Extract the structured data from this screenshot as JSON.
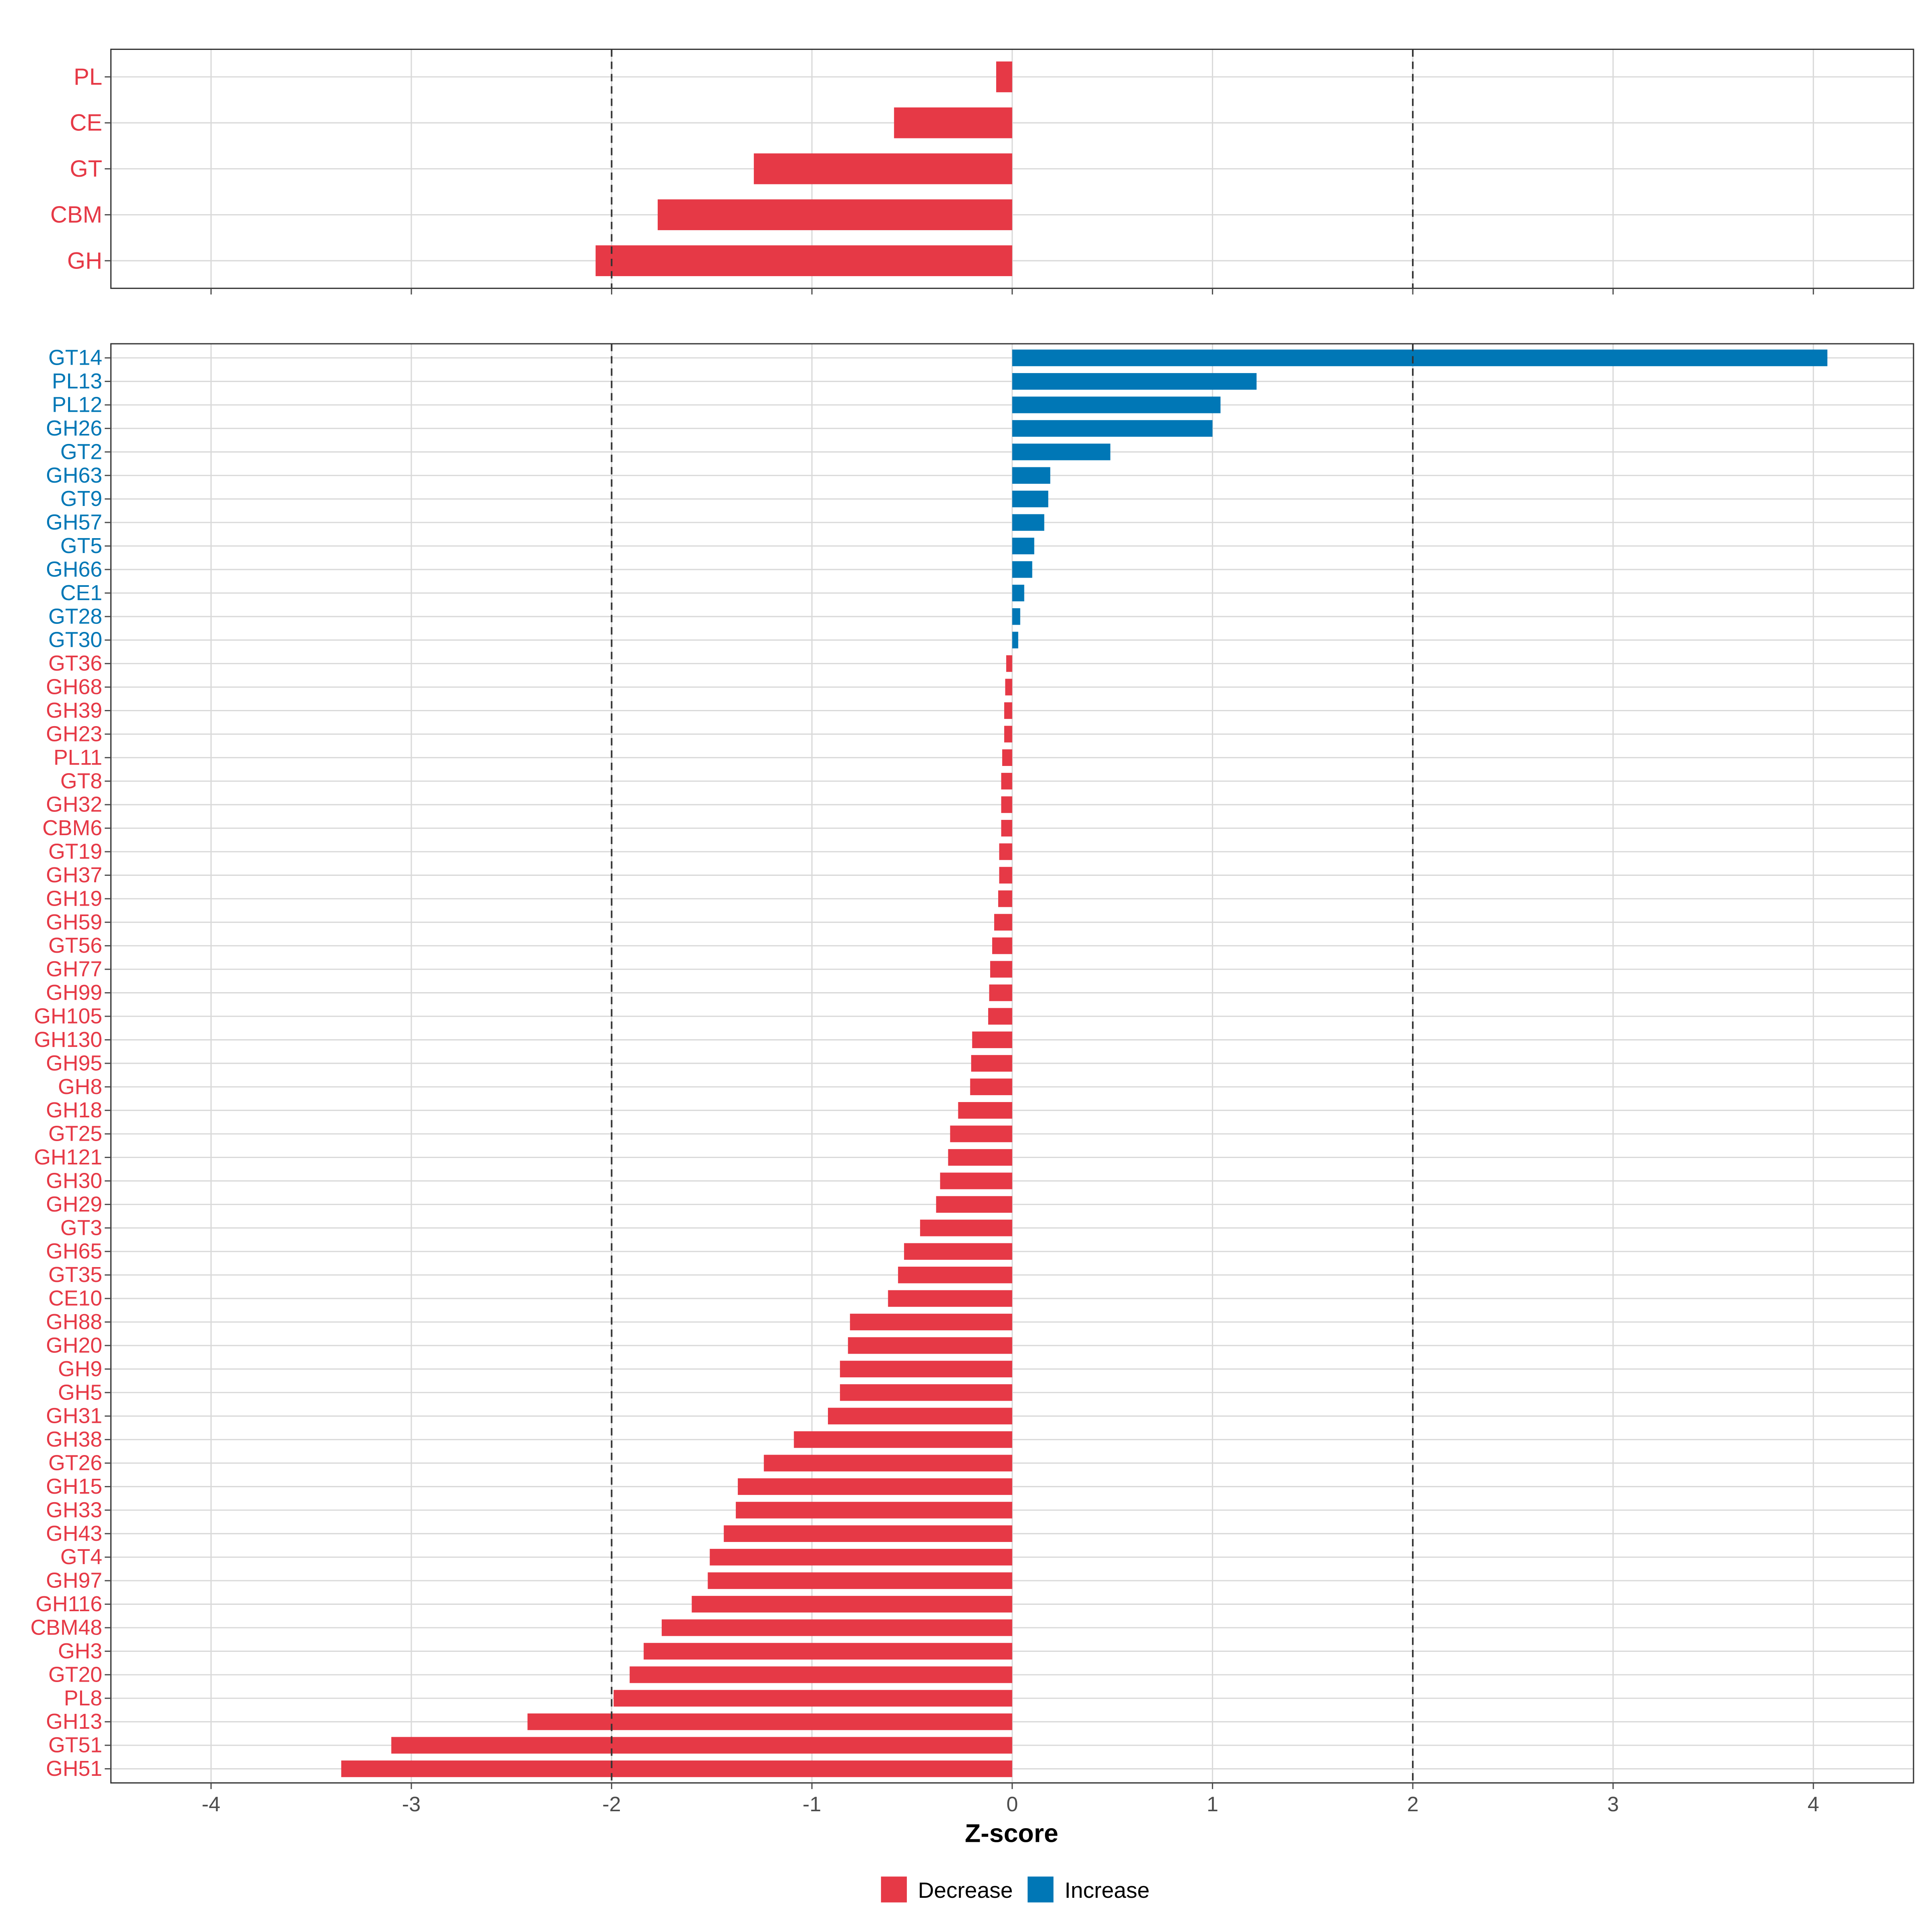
{
  "colors": {
    "decrease": "#E63946",
    "increase": "#0077B6",
    "grid": "#D9D9D9",
    "panel_border": "#333333",
    "axis_text": "#4D4D4D",
    "threshold_line": "#333333"
  },
  "chart_data": [
    {
      "type": "bar",
      "orientation": "horizontal",
      "panel": "class-level",
      "categories": [
        "PL",
        "CE",
        "GT",
        "CBM",
        "GH"
      ],
      "values": [
        -0.08,
        -0.59,
        -1.29,
        -1.77,
        -2.08
      ],
      "xlim": [
        -4.5,
        4.5
      ],
      "x_ticks": [
        -4,
        -3,
        -2,
        -1,
        0,
        1,
        2,
        3,
        4
      ],
      "threshold_lines": [
        -2,
        2
      ],
      "xlabel": "",
      "ylabel": ""
    },
    {
      "type": "bar",
      "orientation": "horizontal",
      "panel": "family-level",
      "categories": [
        "GT14",
        "PL13",
        "PL12",
        "GH26",
        "GT2",
        "GH63",
        "GT9",
        "GH57",
        "GT5",
        "GH66",
        "CE1",
        "GT28",
        "GT30",
        "GT36",
        "GH68",
        "GH39",
        "GH23",
        "PL11",
        "GT8",
        "GH32",
        "CBM6",
        "GT19",
        "GH37",
        "GH19",
        "GH59",
        "GT56",
        "GH77",
        "GH99",
        "GH105",
        "GH130",
        "GH95",
        "GH8",
        "GH18",
        "GT25",
        "GH121",
        "GH30",
        "GH29",
        "GT3",
        "GH65",
        "GT35",
        "CE10",
        "GH88",
        "GH20",
        "GH9",
        "GH5",
        "GH31",
        "GH38",
        "GT26",
        "GH15",
        "GH33",
        "GH43",
        "GT4",
        "GH97",
        "GH116",
        "CBM48",
        "GH3",
        "GT20",
        "PL8",
        "GH13",
        "GT51",
        "GH51"
      ],
      "values": [
        4.07,
        1.22,
        1.04,
        1.0,
        0.49,
        0.19,
        0.18,
        0.16,
        0.11,
        0.1,
        0.06,
        0.04,
        0.03,
        -0.03,
        -0.035,
        -0.04,
        -0.04,
        -0.05,
        -0.055,
        -0.055,
        -0.055,
        -0.065,
        -0.065,
        -0.07,
        -0.09,
        -0.1,
        -0.11,
        -0.115,
        -0.12,
        -0.2,
        -0.205,
        -0.21,
        -0.27,
        -0.31,
        -0.32,
        -0.36,
        -0.38,
        -0.46,
        -0.54,
        -0.57,
        -0.62,
        -0.81,
        -0.82,
        -0.86,
        -0.86,
        -0.92,
        -1.09,
        -1.24,
        -1.37,
        -1.38,
        -1.44,
        -1.51,
        -1.52,
        -1.6,
        -1.75,
        -1.84,
        -1.91,
        -1.99,
        -2.42,
        -3.1,
        -3.35
      ],
      "xlim": [
        -4.5,
        4.5
      ],
      "x_ticks": [
        -4,
        -3,
        -2,
        -1,
        0,
        1,
        2,
        3,
        4
      ],
      "threshold_lines": [
        -2,
        2
      ],
      "xlabel": "Z-score",
      "ylabel": ""
    }
  ],
  "legend": {
    "items": [
      {
        "label": "Decrease",
        "color_key": "decrease"
      },
      {
        "label": "Increase",
        "color_key": "increase"
      }
    ],
    "position": "bottom-center"
  }
}
